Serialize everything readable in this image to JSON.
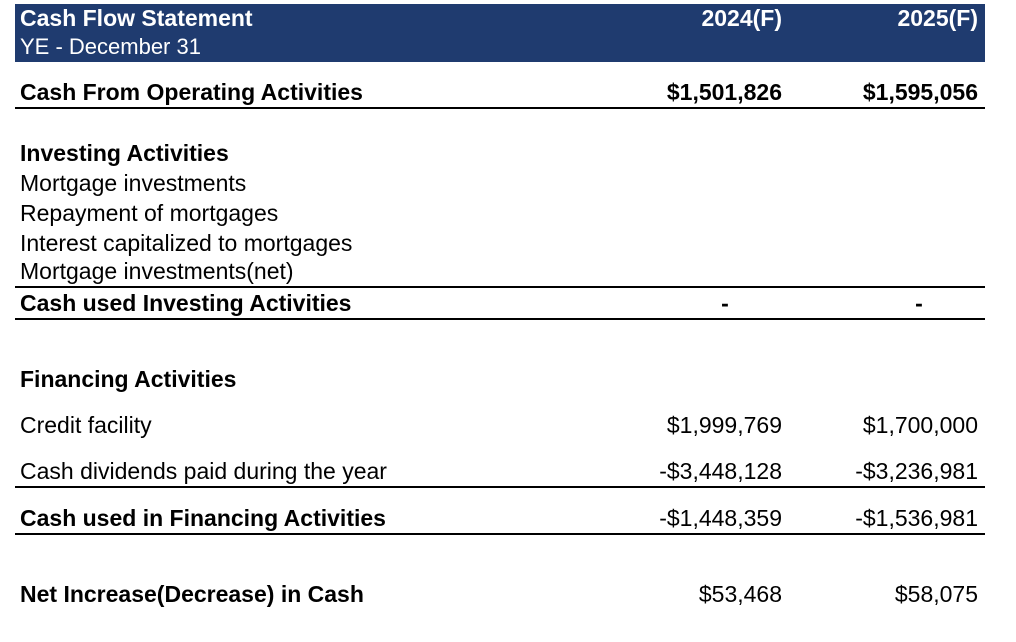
{
  "header": {
    "title": "Cash Flow Statement",
    "subtitle": "YE - December 31",
    "col1": "2024(F)",
    "col2": "2025(F)"
  },
  "operating": {
    "label": "Cash From Operating Activities",
    "v1": "$1,501,826",
    "v2": "$1,595,056"
  },
  "investing": {
    "heading": "Investing Activities",
    "items": [
      "Mortgage investments",
      "Repayment of mortgages",
      "Interest capitalized to mortgages",
      "Mortgage investments(net)"
    ],
    "total_label": "Cash used Investing Activities",
    "total_v1": "-",
    "total_v2": "-"
  },
  "financing": {
    "heading": "Financing Activities",
    "rows": [
      {
        "label": "Credit facility",
        "v1": "$1,999,769",
        "v2": "$1,700,000"
      },
      {
        "label": "Cash dividends paid during the year",
        "v1": "-$3,448,128",
        "v2": "-$3,236,981"
      }
    ],
    "total_label": "Cash used in Financing Activities",
    "total_v1": "-$1,448,359",
    "total_v2": "-$1,536,981"
  },
  "net": {
    "label": "Net Increase(Decrease) in Cash",
    "v1": "$53,468",
    "v2": "$58,075"
  }
}
